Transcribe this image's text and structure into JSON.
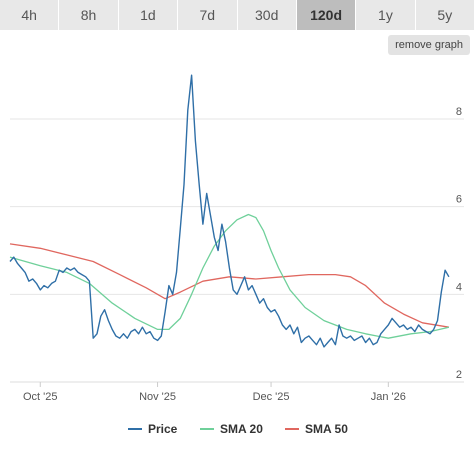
{
  "range_tabs": [
    {
      "label": "4h",
      "active": false
    },
    {
      "label": "8h",
      "active": false
    },
    {
      "label": "1d",
      "active": false
    },
    {
      "label": "7d",
      "active": false
    },
    {
      "label": "30d",
      "active": false
    },
    {
      "label": "120d",
      "active": true
    },
    {
      "label": "1y",
      "active": false
    },
    {
      "label": "5y",
      "active": false
    }
  ],
  "remove_graph_label": "remove graph",
  "chart_data": {
    "type": "line",
    "x_start": "2025-09-23",
    "x_end": "2026-01-21",
    "ylim": [
      2,
      9.3
    ],
    "y_ticks": [
      2,
      4,
      6,
      8
    ],
    "y_tick_labels": [
      "2",
      "4",
      "6",
      "8"
    ],
    "x_ticks": [
      {
        "date": "2025-10-01",
        "label": "Oct '25"
      },
      {
        "date": "2025-11-01",
        "label": "Nov '25"
      },
      {
        "date": "2025-12-01",
        "label": "Dec '25"
      },
      {
        "date": "2026-01-01",
        "label": "Jan '26"
      }
    ],
    "grid": "horizontal",
    "legend_position": "bottom",
    "series": [
      {
        "name": "Price",
        "color": "#2f6fa7",
        "points": [
          [
            "2025-09-23",
            4.75
          ],
          [
            "2025-09-24",
            4.85
          ],
          [
            "2025-09-25",
            4.7
          ],
          [
            "2025-09-26",
            4.6
          ],
          [
            "2025-09-27",
            4.5
          ],
          [
            "2025-09-28",
            4.3
          ],
          [
            "2025-09-29",
            4.35
          ],
          [
            "2025-09-30",
            4.25
          ],
          [
            "2025-10-01",
            4.1
          ],
          [
            "2025-10-02",
            4.2
          ],
          [
            "2025-10-03",
            4.15
          ],
          [
            "2025-10-04",
            4.25
          ],
          [
            "2025-10-05",
            4.3
          ],
          [
            "2025-10-06",
            4.55
          ],
          [
            "2025-10-07",
            4.5
          ],
          [
            "2025-10-08",
            4.6
          ],
          [
            "2025-10-09",
            4.55
          ],
          [
            "2025-10-10",
            4.6
          ],
          [
            "2025-10-11",
            4.5
          ],
          [
            "2025-10-12",
            4.45
          ],
          [
            "2025-10-13",
            4.4
          ],
          [
            "2025-10-14",
            4.3
          ],
          [
            "2025-10-15",
            3.0
          ],
          [
            "2025-10-16",
            3.1
          ],
          [
            "2025-10-17",
            3.5
          ],
          [
            "2025-10-18",
            3.65
          ],
          [
            "2025-10-19",
            3.4
          ],
          [
            "2025-10-20",
            3.2
          ],
          [
            "2025-10-21",
            3.05
          ],
          [
            "2025-10-22",
            3.0
          ],
          [
            "2025-10-23",
            3.1
          ],
          [
            "2025-10-24",
            3.0
          ],
          [
            "2025-10-25",
            3.15
          ],
          [
            "2025-10-26",
            3.2
          ],
          [
            "2025-10-27",
            3.1
          ],
          [
            "2025-10-28",
            3.25
          ],
          [
            "2025-10-29",
            3.1
          ],
          [
            "2025-10-30",
            3.15
          ],
          [
            "2025-10-31",
            3.0
          ],
          [
            "2025-11-01",
            2.95
          ],
          [
            "2025-11-02",
            3.05
          ],
          [
            "2025-11-03",
            3.6
          ],
          [
            "2025-11-04",
            4.2
          ],
          [
            "2025-11-05",
            4.0
          ],
          [
            "2025-11-06",
            4.5
          ],
          [
            "2025-11-07",
            5.5
          ],
          [
            "2025-11-08",
            6.5
          ],
          [
            "2025-11-09",
            8.2
          ],
          [
            "2025-11-10",
            9.0
          ],
          [
            "2025-11-11",
            7.5
          ],
          [
            "2025-11-12",
            6.5
          ],
          [
            "2025-11-13",
            5.6
          ],
          [
            "2025-11-14",
            6.3
          ],
          [
            "2025-11-15",
            5.8
          ],
          [
            "2025-11-16",
            5.3
          ],
          [
            "2025-11-17",
            5.0
          ],
          [
            "2025-11-18",
            5.6
          ],
          [
            "2025-11-19",
            5.2
          ],
          [
            "2025-11-20",
            4.6
          ],
          [
            "2025-11-21",
            4.1
          ],
          [
            "2025-11-22",
            4.0
          ],
          [
            "2025-11-23",
            4.2
          ],
          [
            "2025-11-24",
            4.4
          ],
          [
            "2025-11-25",
            4.1
          ],
          [
            "2025-11-26",
            4.2
          ],
          [
            "2025-11-27",
            4.0
          ],
          [
            "2025-11-28",
            3.8
          ],
          [
            "2025-11-29",
            3.9
          ],
          [
            "2025-11-30",
            3.7
          ],
          [
            "2025-12-01",
            3.6
          ],
          [
            "2025-12-02",
            3.65
          ],
          [
            "2025-12-03",
            3.5
          ],
          [
            "2025-12-04",
            3.3
          ],
          [
            "2025-12-05",
            3.2
          ],
          [
            "2025-12-06",
            3.3
          ],
          [
            "2025-12-07",
            3.1
          ],
          [
            "2025-12-08",
            3.25
          ],
          [
            "2025-12-09",
            2.9
          ],
          [
            "2025-12-10",
            3.0
          ],
          [
            "2025-12-11",
            3.05
          ],
          [
            "2025-12-12",
            2.95
          ],
          [
            "2025-12-13",
            2.85
          ],
          [
            "2025-12-14",
            3.0
          ],
          [
            "2025-12-15",
            2.8
          ],
          [
            "2025-12-16",
            2.9
          ],
          [
            "2025-12-17",
            3.0
          ],
          [
            "2025-12-18",
            2.85
          ],
          [
            "2025-12-19",
            3.3
          ],
          [
            "2025-12-20",
            3.05
          ],
          [
            "2025-12-21",
            3.0
          ],
          [
            "2025-12-22",
            3.05
          ],
          [
            "2025-12-23",
            2.95
          ],
          [
            "2025-12-24",
            3.0
          ],
          [
            "2025-12-25",
            3.05
          ],
          [
            "2025-12-26",
            2.9
          ],
          [
            "2025-12-27",
            3.0
          ],
          [
            "2025-12-28",
            2.85
          ],
          [
            "2025-12-29",
            2.9
          ],
          [
            "2025-12-30",
            3.1
          ],
          [
            "2025-12-31",
            3.2
          ],
          [
            "2026-01-01",
            3.3
          ],
          [
            "2026-01-02",
            3.45
          ],
          [
            "2026-01-03",
            3.35
          ],
          [
            "2026-01-04",
            3.25
          ],
          [
            "2026-01-05",
            3.3
          ],
          [
            "2026-01-06",
            3.2
          ],
          [
            "2026-01-07",
            3.25
          ],
          [
            "2026-01-08",
            3.15
          ],
          [
            "2026-01-09",
            3.3
          ],
          [
            "2026-01-10",
            3.2
          ],
          [
            "2026-01-11",
            3.15
          ],
          [
            "2026-01-12",
            3.1
          ],
          [
            "2026-01-13",
            3.2
          ],
          [
            "2026-01-14",
            3.4
          ],
          [
            "2026-01-15",
            4.05
          ],
          [
            "2026-01-16",
            4.55
          ],
          [
            "2026-01-17",
            4.4
          ]
        ]
      },
      {
        "name": "SMA 20",
        "color": "#6fd09a",
        "points": [
          [
            "2025-09-23",
            4.85
          ],
          [
            "2025-10-01",
            4.65
          ],
          [
            "2025-10-08",
            4.5
          ],
          [
            "2025-10-14",
            4.25
          ],
          [
            "2025-10-20",
            3.8
          ],
          [
            "2025-10-26",
            3.45
          ],
          [
            "2025-11-01",
            3.2
          ],
          [
            "2025-11-04",
            3.2
          ],
          [
            "2025-11-07",
            3.45
          ],
          [
            "2025-11-10",
            4.0
          ],
          [
            "2025-11-13",
            4.6
          ],
          [
            "2025-11-16",
            5.1
          ],
          [
            "2025-11-19",
            5.45
          ],
          [
            "2025-11-22",
            5.7
          ],
          [
            "2025-11-25",
            5.82
          ],
          [
            "2025-11-27",
            5.75
          ],
          [
            "2025-11-29",
            5.45
          ],
          [
            "2025-12-01",
            5.0
          ],
          [
            "2025-12-03",
            4.6
          ],
          [
            "2025-12-06",
            4.1
          ],
          [
            "2025-12-10",
            3.7
          ],
          [
            "2025-12-15",
            3.4
          ],
          [
            "2025-12-21",
            3.2
          ],
          [
            "2025-12-26",
            3.1
          ],
          [
            "2026-01-01",
            3.0
          ],
          [
            "2026-01-07",
            3.1
          ],
          [
            "2026-01-12",
            3.15
          ],
          [
            "2026-01-17",
            3.25
          ]
        ]
      },
      {
        "name": "SMA 50",
        "color": "#e0675f",
        "points": [
          [
            "2025-09-23",
            5.15
          ],
          [
            "2025-10-01",
            5.05
          ],
          [
            "2025-10-08",
            4.9
          ],
          [
            "2025-10-15",
            4.75
          ],
          [
            "2025-10-22",
            4.45
          ],
          [
            "2025-10-29",
            4.15
          ],
          [
            "2025-11-03",
            3.9
          ],
          [
            "2025-11-07",
            4.05
          ],
          [
            "2025-11-13",
            4.3
          ],
          [
            "2025-11-20",
            4.4
          ],
          [
            "2025-11-27",
            4.35
          ],
          [
            "2025-12-04",
            4.4
          ],
          [
            "2025-12-11",
            4.45
          ],
          [
            "2025-12-18",
            4.45
          ],
          [
            "2025-12-22",
            4.4
          ],
          [
            "2025-12-26",
            4.2
          ],
          [
            "2025-12-31",
            3.8
          ],
          [
            "2026-01-05",
            3.55
          ],
          [
            "2026-01-10",
            3.35
          ],
          [
            "2026-01-17",
            3.25
          ]
        ]
      }
    ]
  }
}
